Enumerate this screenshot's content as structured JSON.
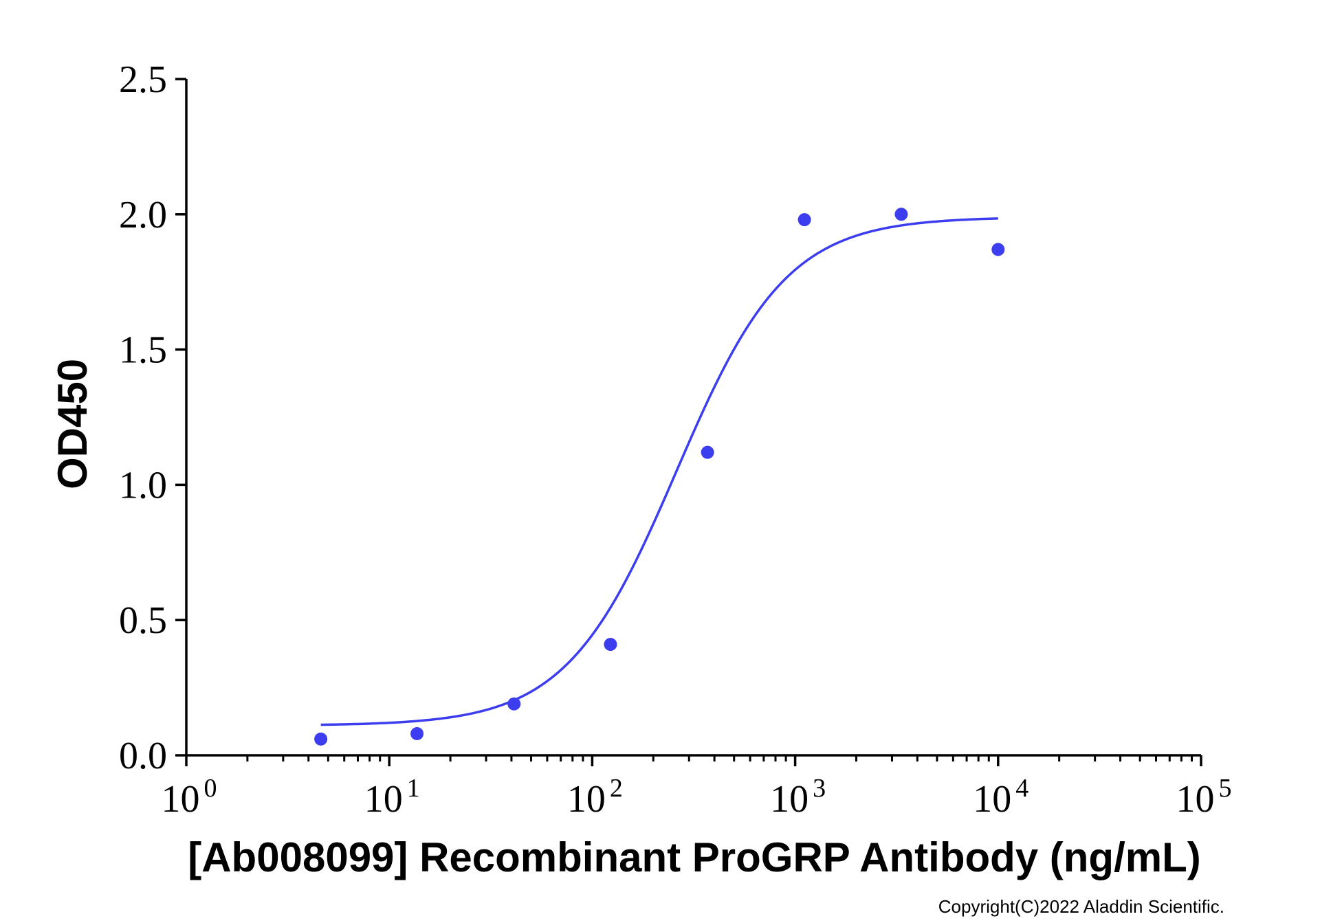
{
  "chart_data": {
    "type": "scatter",
    "xlabel": "[Ab008099] Recombinant ProGRP Antibody (ng/mL)",
    "ylabel": "OD450",
    "x_scale": "log",
    "xlim": [
      1,
      100000
    ],
    "ylim": [
      0,
      2.5
    ],
    "x_tick_labels": [
      {
        "base": "10",
        "exp": "0"
      },
      {
        "base": "10",
        "exp": "1"
      },
      {
        "base": "10",
        "exp": "2"
      },
      {
        "base": "10",
        "exp": "3"
      },
      {
        "base": "10",
        "exp": "4"
      },
      {
        "base": "10",
        "exp": "5"
      }
    ],
    "y_tick_labels": [
      "0.0",
      "0.5",
      "1.0",
      "1.5",
      "2.0",
      "2.5"
    ],
    "grid": false,
    "legend": "none",
    "series": [
      {
        "points": [
          {
            "x": 4.6,
            "y": 0.06
          },
          {
            "x": 13.7,
            "y": 0.08
          },
          {
            "x": 41.2,
            "y": 0.19
          },
          {
            "x": 123,
            "y": 0.41
          },
          {
            "x": 370,
            "y": 1.12
          },
          {
            "x": 1111,
            "y": 1.98
          },
          {
            "x": 3333,
            "y": 2.0
          },
          {
            "x": 10000,
            "y": 1.87
          }
        ],
        "fit": {
          "model": "4PL",
          "bottom": 0.11,
          "top": 1.99,
          "ec50": 260,
          "hill": 1.6,
          "x_range": [
            4.6,
            10000
          ]
        },
        "color": "#3d3df0"
      }
    ]
  },
  "footer": {
    "copyright": "Copyright(C)2022 Aladdin Scientific."
  }
}
